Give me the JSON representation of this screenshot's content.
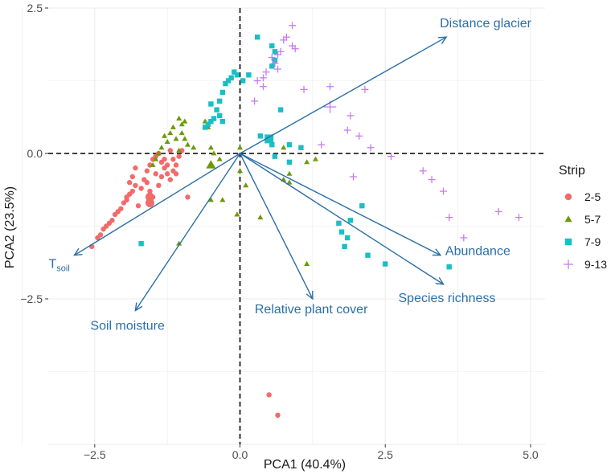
{
  "chart_data": {
    "type": "scatter",
    "subtype": "pca-biplot",
    "xlabel": "PCA1 (40.4%)",
    "ylabel": "PCA2 (23.5%)",
    "xlim": [
      -3.3,
      5.25
    ],
    "ylim": [
      -5.0,
      2.5
    ],
    "x_ticks": [
      -2.5,
      0.0,
      2.5,
      5.0
    ],
    "x_tick_labels": [
      "−2.5",
      "0.0",
      "2.5",
      "5.0"
    ],
    "y_ticks": [
      2.5,
      0.0,
      -2.5
    ],
    "y_tick_labels": [
      "2.5",
      "0.0",
      "−2.5"
    ],
    "grid": true,
    "legend": {
      "title": "Strip",
      "placement": "right",
      "entries": [
        "2-5",
        "5-7",
        "7-9",
        "9-13"
      ]
    },
    "colors": {
      "s2_5": "#f26b6b",
      "s5_7": "#6c9a0a",
      "s7_9": "#19bfc4",
      "s9_13": "#c77cf0",
      "arrow": "#2b6fa8",
      "grid": "#ebebeb"
    },
    "series": [
      {
        "name": "2-5",
        "shape": "circle",
        "color": "#f26b6b",
        "points": [
          [
            -2.55,
            -1.6
          ],
          [
            -2.45,
            -1.45
          ],
          [
            -2.4,
            -1.4
          ],
          [
            -2.35,
            -1.3
          ],
          [
            -2.25,
            -1.2
          ],
          [
            -2.2,
            -1.15
          ],
          [
            -2.15,
            -1.05
          ],
          [
            -2.05,
            -0.95
          ],
          [
            -2.0,
            -0.85
          ],
          [
            -1.95,
            -0.75
          ],
          [
            -1.9,
            -0.5
          ],
          [
            -1.85,
            -0.4
          ],
          [
            -1.8,
            -0.25
          ],
          [
            -1.75,
            -0.9
          ],
          [
            -1.7,
            -0.6
          ],
          [
            -1.65,
            -0.45
          ],
          [
            -1.6,
            -0.3
          ],
          [
            -1.55,
            -0.2
          ],
          [
            -1.5,
            -0.1
          ],
          [
            -1.45,
            -0.05
          ],
          [
            -1.4,
            0.0
          ],
          [
            -1.35,
            -0.15
          ],
          [
            -1.3,
            -0.25
          ],
          [
            -1.25,
            -0.35
          ],
          [
            -1.2,
            -0.45
          ],
          [
            -1.15,
            -0.3
          ],
          [
            -1.1,
            -0.2
          ],
          [
            -1.05,
            -0.05
          ],
          [
            -1.0,
            0.05
          ],
          [
            -1.8,
            -0.55
          ],
          [
            -1.6,
            -0.5
          ],
          [
            -1.55,
            -0.65
          ],
          [
            -1.5,
            -0.75
          ],
          [
            -1.45,
            -0.35
          ],
          [
            -1.4,
            -0.55
          ],
          [
            -1.35,
            -0.4
          ],
          [
            -1.3,
            -0.1
          ],
          [
            -1.25,
            -0.2
          ],
          [
            -1.2,
            0.05
          ],
          [
            -1.15,
            -0.1
          ],
          [
            -1.1,
            -0.35
          ],
          [
            -2.3,
            -1.25
          ],
          [
            -2.1,
            -1.0
          ],
          [
            -1.95,
            -0.8
          ],
          [
            -1.9,
            -0.7
          ],
          [
            -1.85,
            -0.65
          ],
          [
            -0.9,
            -0.75
          ],
          [
            0.5,
            -4.15
          ],
          [
            0.65,
            -4.5
          ]
        ],
        "large_points": [
          [
            -1.55,
            -0.85
          ],
          [
            -1.55,
            -0.75
          ]
        ]
      },
      {
        "name": "5-7",
        "shape": "triangle",
        "color": "#6c9a0a",
        "points": [
          [
            -1.05,
            0.6
          ],
          [
            -1.0,
            0.5
          ],
          [
            -0.95,
            0.55
          ],
          [
            -0.6,
            0.55
          ],
          [
            -0.55,
            0.45
          ],
          [
            -1.3,
            0.3
          ],
          [
            -1.25,
            0.2
          ],
          [
            -1.2,
            0.35
          ],
          [
            -1.15,
            0.45
          ],
          [
            -1.1,
            0.25
          ],
          [
            -1.0,
            0.35
          ],
          [
            -0.95,
            0.25
          ],
          [
            -0.9,
            0.15
          ],
          [
            -1.4,
            0.0
          ],
          [
            -1.35,
            0.1
          ],
          [
            -1.45,
            -0.1
          ],
          [
            -1.5,
            -0.2
          ],
          [
            -1.05,
            0.05
          ],
          [
            -0.8,
            0.1
          ],
          [
            -0.5,
            0.1
          ],
          [
            -0.45,
            0.0
          ],
          [
            -0.35,
            -0.1
          ],
          [
            0.0,
            -0.3
          ],
          [
            0.1,
            -0.55
          ],
          [
            -0.5,
            -0.8
          ],
          [
            -0.3,
            -0.8
          ],
          [
            -0.05,
            -1.05
          ],
          [
            0.35,
            -1.1
          ],
          [
            0.0,
            0.1
          ],
          [
            0.75,
            0.1
          ],
          [
            0.85,
            -0.35
          ],
          [
            0.75,
            -0.45
          ],
          [
            0.85,
            -0.5
          ],
          [
            1.15,
            -0.15
          ],
          [
            1.3,
            -0.1
          ],
          [
            1.15,
            -1.9
          ],
          [
            -1.05,
            -1.55
          ]
        ],
        "large_points": [
          [
            -0.5,
            -0.2
          ]
        ]
      },
      {
        "name": "7-9",
        "shape": "square",
        "color": "#19bfc4",
        "points": [
          [
            0.3,
            2.0
          ],
          [
            0.55,
            1.85
          ],
          [
            0.6,
            1.75
          ],
          [
            0.6,
            1.6
          ],
          [
            0.55,
            1.5
          ],
          [
            -0.05,
            1.35
          ],
          [
            -0.1,
            1.4
          ],
          [
            -0.15,
            1.3
          ],
          [
            -0.2,
            1.25
          ],
          [
            -0.25,
            1.2
          ],
          [
            -0.3,
            1.05
          ],
          [
            -0.35,
            0.9
          ],
          [
            -0.5,
            0.85
          ],
          [
            -0.4,
            0.75
          ],
          [
            -0.45,
            0.6
          ],
          [
            -0.5,
            0.55
          ],
          [
            -0.55,
            0.5
          ],
          [
            -0.6,
            0.45
          ],
          [
            -0.3,
            0.55
          ],
          [
            -0.35,
            0.65
          ],
          [
            0.05,
            1.25
          ],
          [
            0.15,
            1.35
          ],
          [
            0.7,
            0.75
          ],
          [
            0.35,
            0.3
          ],
          [
            0.5,
            0.25
          ],
          [
            0.55,
            0.15
          ],
          [
            0.85,
            0.15
          ],
          [
            0.6,
            -0.05
          ],
          [
            0.85,
            -0.15
          ],
          [
            1.05,
            0.1
          ],
          [
            1.7,
            -1.2
          ],
          [
            1.85,
            -1.45
          ],
          [
            1.9,
            -1.15
          ],
          [
            1.8,
            -1.6
          ],
          [
            1.75,
            -1.35
          ],
          [
            2.1,
            -0.9
          ],
          [
            2.2,
            -1.75
          ],
          [
            2.5,
            -1.9
          ],
          [
            3.6,
            -1.95
          ],
          [
            -1.7,
            -1.55
          ]
        ],
        "large_points": [
          [
            0.5,
            0.25
          ]
        ]
      },
      {
        "name": "9-13",
        "shape": "plus",
        "color": "#c77cf0",
        "points": [
          [
            0.9,
            2.2
          ],
          [
            0.8,
            2.0
          ],
          [
            0.75,
            1.95
          ],
          [
            0.9,
            1.85
          ],
          [
            0.95,
            1.8
          ],
          [
            0.7,
            1.75
          ],
          [
            0.65,
            1.7
          ],
          [
            0.55,
            1.65
          ],
          [
            0.6,
            1.55
          ],
          [
            0.65,
            1.45
          ],
          [
            0.45,
            1.4
          ],
          [
            0.4,
            1.3
          ],
          [
            0.3,
            1.25
          ],
          [
            0.4,
            1.15
          ],
          [
            0.25,
            0.9
          ],
          [
            1.1,
            1.1
          ],
          [
            1.55,
            1.15
          ],
          [
            2.15,
            1.1
          ],
          [
            1.9,
            0.65
          ],
          [
            1.85,
            0.4
          ],
          [
            2.05,
            0.3
          ],
          [
            1.4,
            0.15
          ],
          [
            2.25,
            0.1
          ],
          [
            2.6,
            -0.05
          ],
          [
            1.95,
            -0.4
          ],
          [
            3.15,
            -0.3
          ],
          [
            3.3,
            -0.45
          ],
          [
            3.5,
            -0.65
          ],
          [
            3.6,
            -1.1
          ],
          [
            3.85,
            -1.45
          ],
          [
            4.45,
            -1.0
          ],
          [
            4.8,
            -1.1
          ]
        ],
        "large_points": [
          [
            1.55,
            0.8
          ]
        ]
      }
    ],
    "loadings": [
      {
        "label": "Distance glacier",
        "x": 3.55,
        "y": 2.0
      },
      {
        "label": "T",
        "label_sub": "soil",
        "x": -2.85,
        "y": -1.75
      },
      {
        "label": "Soil  moisture",
        "x": -1.8,
        "y": -2.7
      },
      {
        "label": "Relative plant cover",
        "x": 1.25,
        "y": -2.5
      },
      {
        "label": "Abundance",
        "x": 3.45,
        "y": -1.75
      },
      {
        "label": "Species richness",
        "x": 3.5,
        "y": -2.25
      }
    ]
  }
}
